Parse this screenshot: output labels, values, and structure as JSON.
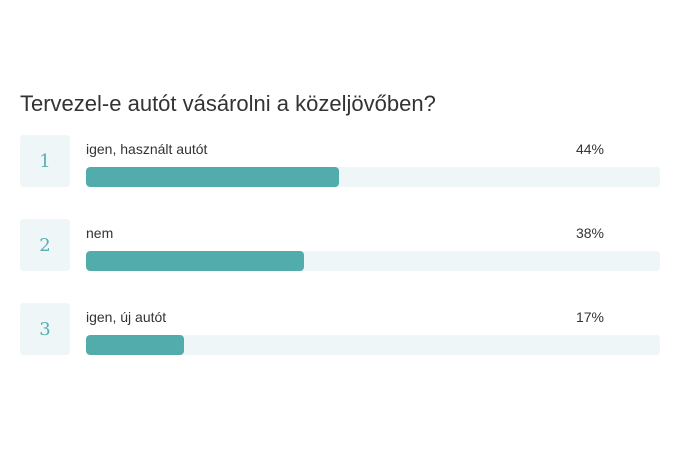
{
  "poll": {
    "question": "Tervezel-e autót vásárolni a közeljövőben?",
    "options": [
      {
        "rank": "1",
        "label": "igen, használt autót",
        "percent_label": "44%",
        "percent": 44
      },
      {
        "rank": "2",
        "label": "nem",
        "percent_label": "38%",
        "percent": 38
      },
      {
        "rank": "3",
        "label": "igen, új autót",
        "percent_label": "17%",
        "percent": 17
      }
    ]
  },
  "colors": {
    "bar_fill": "#52acab",
    "bar_track": "#eef6f8",
    "rank_text": "#5aaeb0"
  }
}
